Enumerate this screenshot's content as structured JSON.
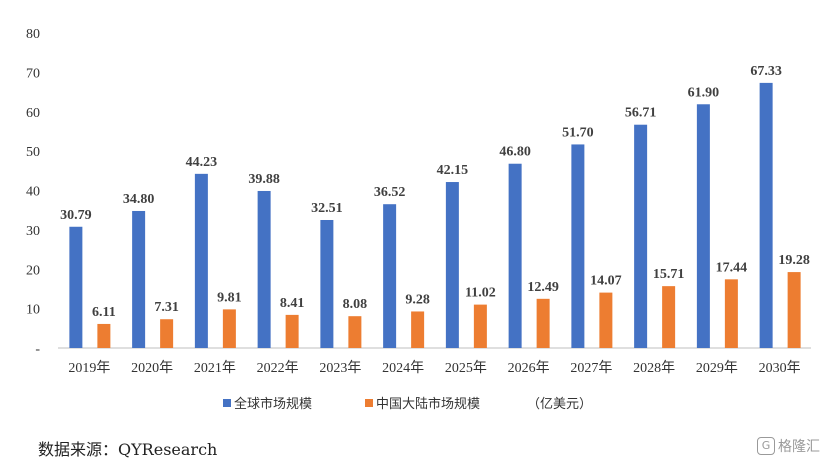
{
  "chart_data": {
    "type": "bar",
    "categories": [
      "2019年",
      "2020年",
      "2021年",
      "2022年",
      "2023年",
      "2024年",
      "2025年",
      "2026年",
      "2027年",
      "2028年",
      "2029年",
      "2030年"
    ],
    "series": [
      {
        "name": "全球市场规模",
        "values": [
          30.79,
          34.8,
          44.23,
          39.88,
          32.51,
          36.52,
          42.15,
          46.8,
          51.7,
          56.71,
          61.9,
          67.33
        ],
        "labels": [
          "30.79",
          "34.80",
          "44.23",
          "39.88",
          "32.51",
          "36.52",
          "42.15",
          "46.80",
          "51.70",
          "56.71",
          "61.90",
          "67.33"
        ],
        "color": "#4472C4"
      },
      {
        "name": "中国大陆市场规模",
        "values": [
          6.11,
          7.31,
          9.81,
          8.41,
          8.08,
          9.28,
          11.02,
          12.49,
          14.07,
          15.71,
          17.44,
          19.28
        ],
        "labels": [
          "6.11",
          "7.31",
          "9.81",
          "8.41",
          "8.08",
          "9.28",
          "11.02",
          "12.49",
          "14.07",
          "15.71",
          "17.44",
          "19.28"
        ],
        "color": "#ED7D31"
      }
    ],
    "unit_label": "（亿美元）",
    "ylim": [
      0,
      80
    ],
    "yticks": [
      0,
      10,
      20,
      30,
      40,
      50,
      60,
      70,
      80
    ],
    "ytick_labels": [
      "-",
      "10",
      "20",
      "30",
      "40",
      "50",
      "60",
      "70",
      "80"
    ],
    "grid": false,
    "legend_position": "bottom"
  },
  "source_text": "数据来源：QYResearch",
  "watermark_text": "格隆汇",
  "watermark_icon_glyph": "G"
}
